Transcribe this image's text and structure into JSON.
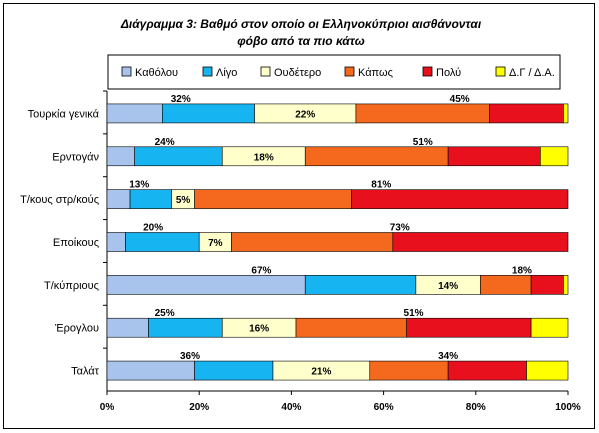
{
  "chart_data": {
    "type": "bar",
    "orientation": "horizontal",
    "stacked": "percent",
    "title": "Διάγραμμα 3: Βαθμό στον οποίο οι Ελληνοκύπριοι αισθάνονται",
    "subtitle": "φόβο από τα πιο κάτω",
    "categories": [
      "Τουρκία γενικά",
      "Ερντογάν",
      "Τ/κους στρ/κούς",
      "Εποίκους",
      "Τ/κύπριους",
      "Έρογλου",
      "Ταλάτ"
    ],
    "series": [
      {
        "name": "Καθόλου",
        "color": "#a9c4ec",
        "values": [
          12,
          6,
          5,
          4,
          43,
          9,
          19
        ]
      },
      {
        "name": "Λίγο",
        "color": "#16b4f0",
        "values": [
          20,
          19,
          9,
          16,
          24,
          16,
          17
        ]
      },
      {
        "name": "Ουδέτερο",
        "color": "#ffffcc",
        "values": [
          22,
          18,
          5,
          7,
          14,
          16,
          21
        ]
      },
      {
        "name": "Κάπως",
        "color": "#f4691e",
        "values": [
          29,
          31,
          34,
          35,
          11,
          24,
          17
        ]
      },
      {
        "name": "Πολύ",
        "color": "#e8101c",
        "values": [
          16,
          20,
          47,
          38,
          7,
          27,
          17
        ]
      },
      {
        "name": "Δ.Γ / Δ.Α.",
        "color": "#ffff00",
        "values": [
          1,
          6,
          0,
          0,
          1,
          8,
          9
        ]
      }
    ],
    "group_labels": [
      {
        "low": "32%",
        "mid": "22%",
        "high": "45%"
      },
      {
        "low": "24%",
        "mid": "18%",
        "high": "51%"
      },
      {
        "low": "13%",
        "mid": "5%",
        "high": "81%"
      },
      {
        "low": "20%",
        "mid": "7%",
        "high": "73%"
      },
      {
        "low": "67%",
        "mid": "14%",
        "high": "18%"
      },
      {
        "low": "25%",
        "mid": "16%",
        "high": "51%"
      },
      {
        "low": "36%",
        "mid": "21%",
        "high": "34%"
      }
    ],
    "xaxis": {
      "min": 0,
      "max": 100,
      "ticks": [
        "0%",
        "20%",
        "40%",
        "60%",
        "80%",
        "100%"
      ]
    },
    "legend_position": "top",
    "grid": false
  }
}
